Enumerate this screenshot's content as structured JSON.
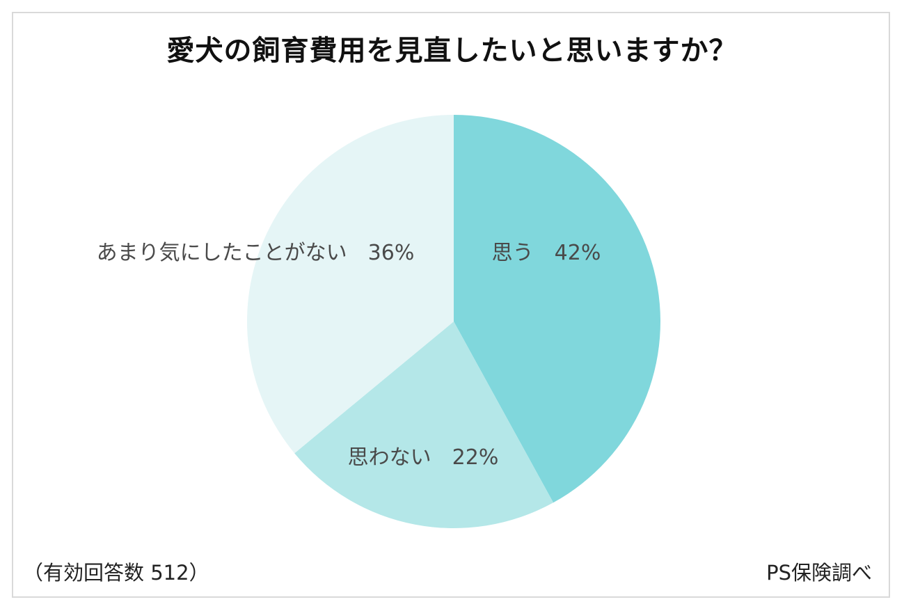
{
  "chart_data": {
    "type": "pie",
    "title": "愛犬の飼育費用を見直したいと思いますか？",
    "categories": [
      "思う",
      "思わない",
      "あまり気にしたことがない"
    ],
    "values": [
      42,
      22,
      36
    ],
    "labels": [
      "思う　42%",
      "思わない　22%",
      "あまり気にしたことがない　36%"
    ],
    "colors": [
      "#80d7dc",
      "#b4e7e8",
      "#e5f5f6"
    ],
    "legend": "none"
  },
  "footnote": "（有効回答数 512）",
  "source": "PS保険調べ"
}
